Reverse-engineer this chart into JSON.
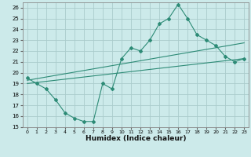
{
  "xlabel": "Humidex (Indice chaleur)",
  "ylabel": "",
  "bg_color": "#cceaea",
  "grid_color": "#aacccc",
  "line_color": "#2d8b76",
  "xlim": [
    -0.5,
    23.5
  ],
  "ylim": [
    15,
    26.5
  ],
  "xticks": [
    0,
    1,
    2,
    3,
    4,
    5,
    6,
    7,
    8,
    9,
    10,
    11,
    12,
    13,
    14,
    15,
    16,
    17,
    18,
    19,
    20,
    21,
    22,
    23
  ],
  "yticks": [
    15,
    16,
    17,
    18,
    19,
    20,
    21,
    22,
    23,
    24,
    25,
    26
  ],
  "line1_x": [
    0,
    1,
    2,
    3,
    4,
    5,
    6,
    7,
    8,
    9,
    10,
    11,
    12,
    13,
    14,
    15,
    16,
    17,
    18,
    19,
    20,
    21,
    22,
    23
  ],
  "line1_y": [
    19.5,
    19.0,
    18.5,
    17.5,
    16.3,
    15.8,
    15.5,
    15.5,
    19.0,
    18.5,
    21.3,
    22.3,
    22.0,
    23.0,
    24.5,
    25.0,
    26.3,
    25.0,
    23.5,
    23.0,
    22.5,
    21.5,
    21.0,
    21.3
  ],
  "line2_x": [
    0,
    1,
    2,
    3,
    4,
    5,
    6,
    7,
    8,
    9,
    10,
    11,
    12,
    13,
    14,
    15,
    16,
    17,
    18,
    19,
    20,
    21,
    22,
    23
  ],
  "line2_y": [
    19.3,
    19.45,
    19.6,
    19.75,
    19.9,
    20.05,
    20.2,
    20.35,
    20.5,
    20.65,
    20.8,
    20.95,
    21.1,
    21.25,
    21.4,
    21.55,
    21.7,
    21.85,
    22.0,
    22.15,
    22.3,
    22.45,
    22.6,
    22.75
  ],
  "line3_x": [
    0,
    1,
    2,
    3,
    4,
    5,
    6,
    7,
    8,
    9,
    10,
    11,
    12,
    13,
    14,
    15,
    16,
    17,
    18,
    19,
    20,
    21,
    22,
    23
  ],
  "line3_y": [
    19.0,
    19.1,
    19.2,
    19.3,
    19.4,
    19.5,
    19.6,
    19.7,
    19.8,
    19.9,
    20.0,
    20.1,
    20.2,
    20.3,
    20.4,
    20.5,
    20.6,
    20.7,
    20.8,
    20.9,
    21.0,
    21.1,
    21.2,
    21.3
  ]
}
